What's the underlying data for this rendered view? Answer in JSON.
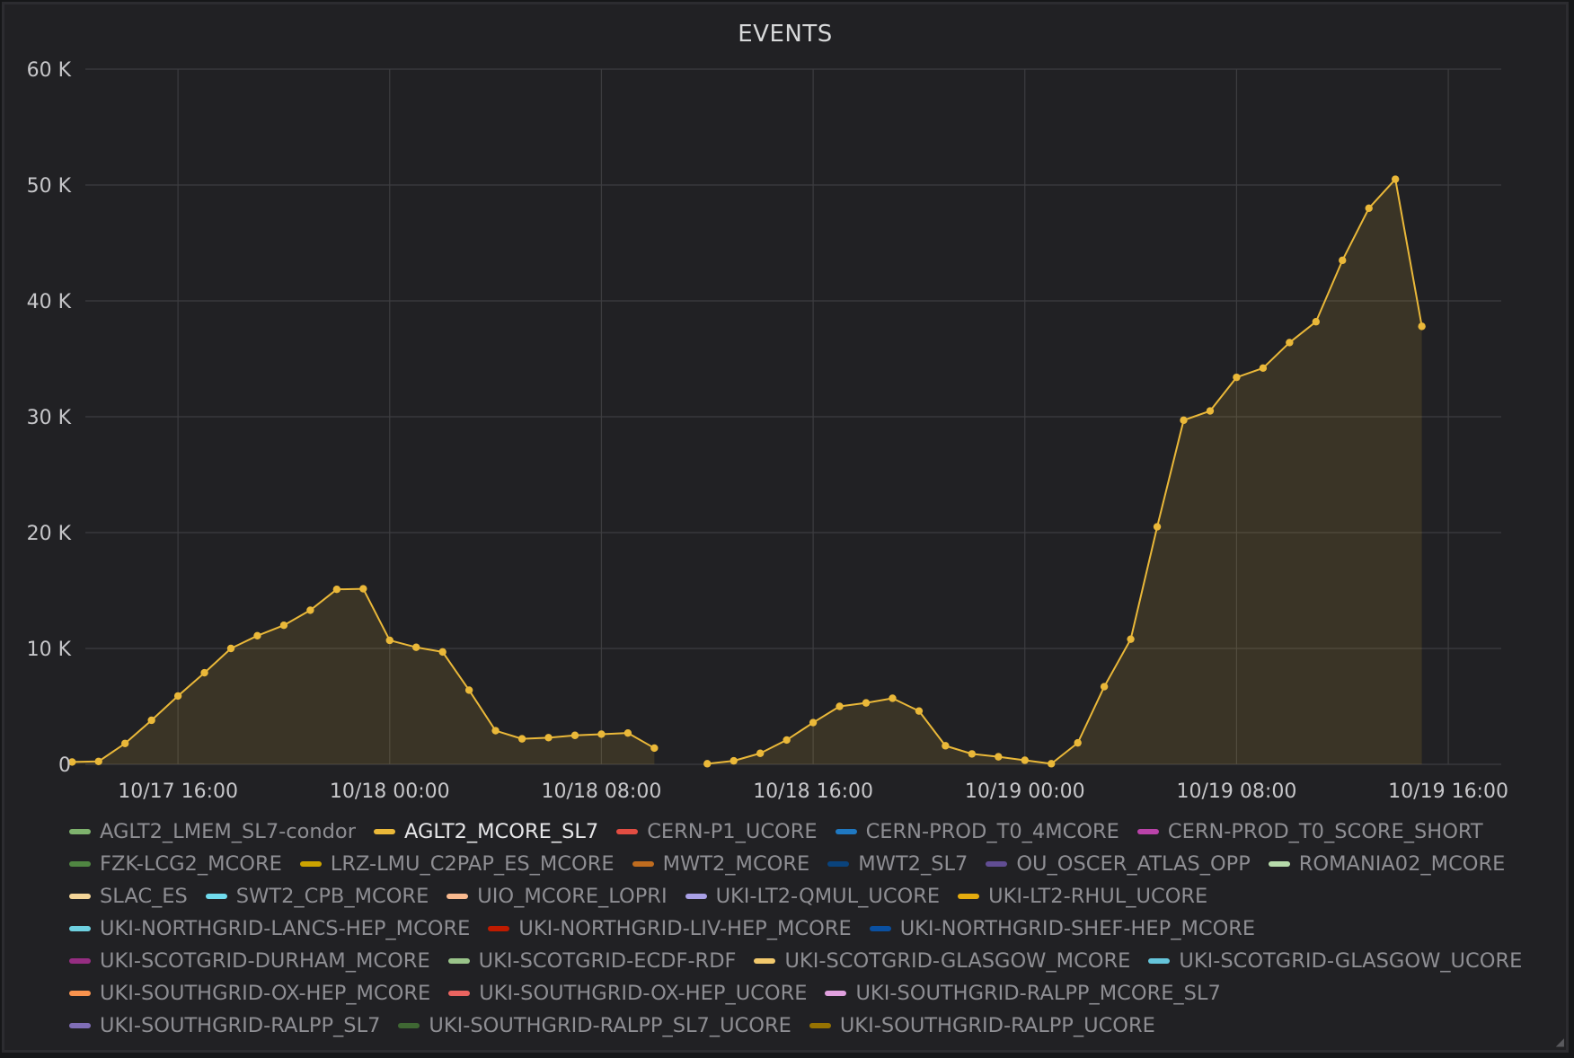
{
  "panel": {
    "title": "EVENTS"
  },
  "chart_data": {
    "type": "area",
    "title": "EVENTS",
    "xlabel": "",
    "ylabel": "",
    "ylim": [
      0,
      60000
    ],
    "y_ticks": [
      0,
      10000,
      20000,
      30000,
      40000,
      50000,
      60000
    ],
    "y_tick_labels": [
      "0",
      "10 K",
      "20 K",
      "30 K",
      "40 K",
      "50 K",
      "60 K"
    ],
    "x_range": [
      "10/17 12:30",
      "10/19 18:00"
    ],
    "x_ticks": [
      "10/17 16:00",
      "10/18 00:00",
      "10/18 08:00",
      "10/18 16:00",
      "10/19 00:00",
      "10/19 08:00",
      "10/19 16:00"
    ],
    "grid": true,
    "legend_position": "bottom",
    "series": [
      {
        "name": "AGLT2_MCORE_SL7",
        "color": "#eab839",
        "points": [
          [
            "10/17 12:00",
            200
          ],
          [
            "10/17 13:00",
            250
          ],
          [
            "10/17 14:00",
            1800
          ],
          [
            "10/17 15:00",
            3800
          ],
          [
            "10/17 16:00",
            5900
          ],
          [
            "10/17 17:00",
            7900
          ],
          [
            "10/17 18:00",
            10000
          ],
          [
            "10/17 19:00",
            11100
          ],
          [
            "10/17 20:00",
            12000
          ],
          [
            "10/17 21:00",
            13300
          ],
          [
            "10/17 22:00",
            15100
          ],
          [
            "10/17 23:00",
            15150
          ],
          [
            "10/18 00:00",
            10700
          ],
          [
            "10/18 01:00",
            10100
          ],
          [
            "10/18 02:00",
            9700
          ],
          [
            "10/18 03:00",
            6400
          ],
          [
            "10/18 04:00",
            2900
          ],
          [
            "10/18 05:00",
            2200
          ],
          [
            "10/18 06:00",
            2300
          ],
          [
            "10/18 07:00",
            2500
          ],
          [
            "10/18 08:00",
            2600
          ],
          [
            "10/18 09:00",
            2700
          ],
          [
            "10/18 10:00",
            1400
          ],
          [
            "10/18 12:00",
            50
          ],
          [
            "10/18 13:00",
            300
          ],
          [
            "10/18 14:00",
            950
          ],
          [
            "10/18 15:00",
            2100
          ],
          [
            "10/18 16:00",
            3600
          ],
          [
            "10/18 17:00",
            5000
          ],
          [
            "10/18 18:00",
            5300
          ],
          [
            "10/18 19:00",
            5700
          ],
          [
            "10/18 20:00",
            4600
          ],
          [
            "10/18 21:00",
            1600
          ],
          [
            "10/18 22:00",
            900
          ],
          [
            "10/18 23:00",
            650
          ],
          [
            "10/19 00:00",
            350
          ],
          [
            "10/19 01:00",
            50
          ],
          [
            "10/19 02:00",
            1850
          ],
          [
            "10/19 03:00",
            6700
          ],
          [
            "10/19 04:00",
            10800
          ],
          [
            "10/19 05:00",
            20500
          ],
          [
            "10/19 06:00",
            29700
          ],
          [
            "10/19 07:00",
            30500
          ],
          [
            "10/19 08:00",
            33400
          ],
          [
            "10/19 09:00",
            34200
          ],
          [
            "10/19 10:00",
            36400
          ],
          [
            "10/19 11:00",
            38200
          ],
          [
            "10/19 12:00",
            43500
          ],
          [
            "10/19 13:00",
            48000
          ],
          [
            "10/19 14:00",
            50500
          ],
          [
            "10/19 15:00",
            37800
          ]
        ]
      }
    ]
  },
  "legend": {
    "items": [
      {
        "label": "AGLT2_LMEM_SL7-condor",
        "color": "#7eb26d",
        "active": false
      },
      {
        "label": "AGLT2_MCORE_SL7",
        "color": "#eab839",
        "active": true
      },
      {
        "label": "CERN-P1_UCORE",
        "color": "#e24d42",
        "active": false
      },
      {
        "label": "CERN-PROD_T0_4MCORE",
        "color": "#1f78c1",
        "active": false
      },
      {
        "label": "CERN-PROD_T0_SCORE_SHORT",
        "color": "#ba43a9",
        "active": false
      },
      {
        "label": "FZK-LCG2_MCORE",
        "color": "#508642",
        "active": false
      },
      {
        "label": "LRZ-LMU_C2PAP_ES_MCORE",
        "color": "#cca300",
        "active": false
      },
      {
        "label": "MWT2_MCORE",
        "color": "#bf6c1f",
        "active": false
      },
      {
        "label": "MWT2_SL7",
        "color": "#0a437c",
        "active": false
      },
      {
        "label": "OU_OSCER_ATLAS_OPP",
        "color": "#614d93",
        "active": false
      },
      {
        "label": "ROMANIA02_MCORE",
        "color": "#b7dbab",
        "active": false
      },
      {
        "label": "SLAC_ES",
        "color": "#f4d598",
        "active": false
      },
      {
        "label": "SWT2_CPB_MCORE",
        "color": "#70dbed",
        "active": false
      },
      {
        "label": "UIO_MCORE_LOPRI",
        "color": "#f9ba8f",
        "active": false
      },
      {
        "label": "UKI-LT2-QMUL_UCORE",
        "color": "#a9a0e6",
        "active": false
      },
      {
        "label": "UKI-LT2-RHUL_UCORE",
        "color": "#e5ac0e",
        "active": false
      },
      {
        "label": "UKI-NORTHGRID-LANCS-HEP_MCORE",
        "color": "#6ed0e0",
        "active": false
      },
      {
        "label": "UKI-NORTHGRID-LIV-HEP_MCORE",
        "color": "#bf1b00",
        "active": false
      },
      {
        "label": "UKI-NORTHGRID-SHEF-HEP_MCORE",
        "color": "#0a50a1",
        "active": false
      },
      {
        "label": "UKI-SCOTGRID-DURHAM_MCORE",
        "color": "#962d82",
        "active": false
      },
      {
        "label": "UKI-SCOTGRID-ECDF-RDF",
        "color": "#9ac48a",
        "active": false
      },
      {
        "label": "UKI-SCOTGRID-GLASGOW_MCORE",
        "color": "#f2c96d",
        "active": false
      },
      {
        "label": "UKI-SCOTGRID-GLASGOW_UCORE",
        "color": "#65c5db",
        "active": false
      },
      {
        "label": "UKI-SOUTHGRID-OX-HEP_MCORE",
        "color": "#f9934e",
        "active": false
      },
      {
        "label": "UKI-SOUTHGRID-OX-HEP_UCORE",
        "color": "#ea6460",
        "active": false
      },
      {
        "label": "UKI-SOUTHGRID-RALPP_MCORE_SL7",
        "color": "#e0a0de",
        "active": false
      },
      {
        "label": "UKI-SOUTHGRID-RALPP_SL7",
        "color": "#806eb7",
        "active": false
      },
      {
        "label": "UKI-SOUTHGRID-RALPP_SL7_UCORE",
        "color": "#3f6833",
        "active": false
      },
      {
        "label": "UKI-SOUTHGRID-RALPP_UCORE",
        "color": "#967302",
        "active": false
      }
    ]
  }
}
